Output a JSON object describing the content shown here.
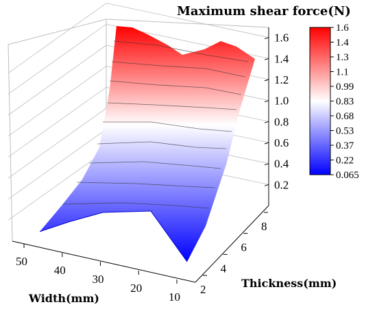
{
  "chart_data": {
    "type": "surface3d",
    "title": "Maximum shear force(N)",
    "xlabel": "Width(mm)",
    "ylabel": "Thickness(mm)",
    "zlabel": "",
    "x_ticks": [
      "50",
      "40",
      "30",
      "20",
      "10"
    ],
    "y_ticks": [
      "2",
      "4",
      "6",
      "8"
    ],
    "z_ticks": [
      "0.2",
      "0.4",
      "0.6",
      "0.8",
      "1.0",
      "1.2",
      "1.4",
      "1.6"
    ],
    "xlim": [
      10,
      50
    ],
    "ylim": [
      2,
      8
    ],
    "zlim": [
      0,
      1.65
    ],
    "colorbar": {
      "ticks": [
        "1.6",
        "1.4",
        "1.3",
        "1.1",
        "0.99",
        "0.83",
        "0.68",
        "0.53",
        "0.37",
        "0.22",
        "0.065"
      ],
      "min": 0.065,
      "max": 1.6,
      "colors": [
        "#0000ff",
        "#ffffff",
        "#ff0000"
      ]
    },
    "surface_trend": "force increases with thickness, nearly flat along width",
    "series": [
      {
        "thickness": 2,
        "width": [
          50,
          40,
          30,
          20,
          10
        ],
        "force": [
          0.07,
          0.07,
          0.065,
          0.065,
          0.065
        ]
      },
      {
        "thickness": 4,
        "width": [
          50,
          40,
          30,
          20,
          10
        ],
        "force": [
          0.45,
          0.46,
          0.45,
          0.45,
          0.44
        ]
      },
      {
        "thickness": 6,
        "width": [
          50,
          40,
          30,
          20,
          10
        ],
        "force": [
          1.0,
          1.0,
          0.99,
          0.98,
          0.97
        ]
      },
      {
        "thickness": 8,
        "width": [
          50,
          40,
          30,
          20,
          10
        ],
        "force": [
          1.62,
          1.6,
          1.52,
          1.6,
          1.48
        ]
      }
    ]
  }
}
